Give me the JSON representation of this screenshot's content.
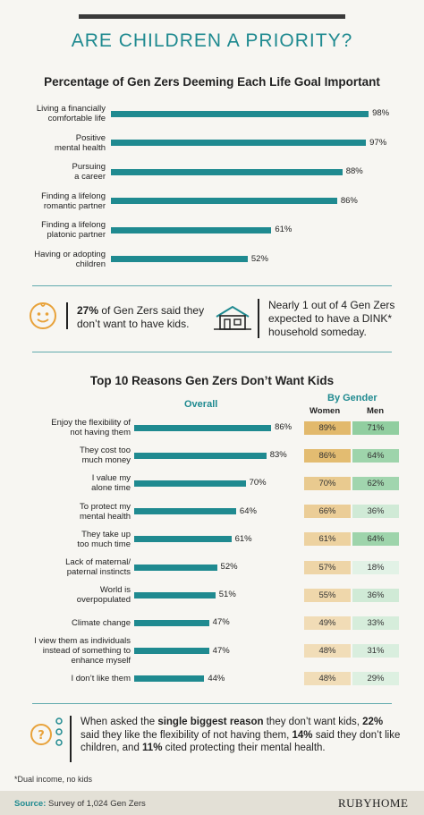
{
  "title": "ARE CHILDREN A PRIORITY?",
  "chart_data": [
    {
      "type": "bar",
      "orientation": "horizontal",
      "title": "Percentage of Gen Zers Deeming Each Life Goal Important",
      "categories": [
        [
          "Living a financially",
          "comfortable life"
        ],
        [
          "Positive",
          "mental health"
        ],
        [
          "Pursuing",
          "a career"
        ],
        [
          "Finding a lifelong",
          "romantic partner"
        ],
        [
          "Finding a lifelong",
          "platonic partner"
        ],
        [
          "Having or adopting",
          "children"
        ]
      ],
      "values": [
        98,
        97,
        88,
        86,
        61,
        52
      ],
      "value_labels": [
        "98%",
        "97%",
        "88%",
        "86%",
        "61%",
        "52%"
      ],
      "xlim": [
        0,
        100
      ],
      "color": "#1f8a90"
    },
    {
      "type": "bar",
      "orientation": "horizontal",
      "title": "Top 10 Reasons Gen Zers Don’t Want  Kids",
      "overall_header": "Overall",
      "categories": [
        [
          "Enjoy the flexibility of",
          "not having them"
        ],
        [
          "They cost too",
          "much money"
        ],
        [
          "I value my",
          "alone time"
        ],
        [
          "To protect my",
          "mental health"
        ],
        [
          "They take up",
          "too much time"
        ],
        [
          "Lack of maternal/",
          "paternal instincts"
        ],
        [
          "World is",
          "overpopulated"
        ],
        [
          "Climate change"
        ],
        [
          "I view them as individuals",
          "instead of something to",
          "enhance myself"
        ],
        [
          "I don’t like them"
        ]
      ],
      "values": [
        86,
        83,
        70,
        64,
        61,
        52,
        51,
        47,
        47,
        44
      ],
      "value_labels": [
        "86%",
        "83%",
        "70%",
        "64%",
        "61%",
        "52%",
        "51%",
        "47%",
        "47%",
        "44%"
      ],
      "xlim": [
        0,
        100
      ],
      "color": "#1f8a90"
    },
    {
      "type": "table",
      "title": "By Gender",
      "columns": [
        "Women",
        "Men"
      ],
      "women": [
        89,
        86,
        70,
        66,
        61,
        57,
        55,
        49,
        48,
        48
      ],
      "women_labels": [
        "89%",
        "86%",
        "70%",
        "66%",
        "61%",
        "57%",
        "55%",
        "49%",
        "48%",
        "48%"
      ],
      "men": [
        71,
        64,
        62,
        36,
        64,
        18,
        36,
        33,
        31,
        29
      ],
      "men_labels": [
        "71%",
        "64%",
        "62%",
        "36%",
        "64%",
        "18%",
        "36%",
        "33%",
        "31%",
        "29%"
      ],
      "women_color": "#e2b86a",
      "men_color": "#6fbf82"
    }
  ],
  "callouts": {
    "left_pct": "27%",
    "left_rest": " of Gen Zers said they don’t want to have kids.",
    "right_text": "Nearly 1 out of 4 Gen Zers expected to have a DINK* household someday."
  },
  "bottom_callout": {
    "t1": "When asked the ",
    "b1": "single biggest reason",
    "t2": " they don’t want kids, ",
    "b2": "22%",
    "t3": " said they like the flexibility of not having them, ",
    "b3": "14%",
    "t4": " said they don’t like children, and ",
    "b4": "11%",
    "t5": " cited protecting their mental health."
  },
  "footnote": "*Dual income, no kids",
  "source_label": "Source:",
  "source_text": " Survey of 1,024 Gen Zers",
  "brand": "RUBYHOME",
  "colors": {
    "accent": "#1f8a90",
    "women": "#e2b86a",
    "men": "#6fbf82",
    "icon_orange": "#e8a23a"
  }
}
